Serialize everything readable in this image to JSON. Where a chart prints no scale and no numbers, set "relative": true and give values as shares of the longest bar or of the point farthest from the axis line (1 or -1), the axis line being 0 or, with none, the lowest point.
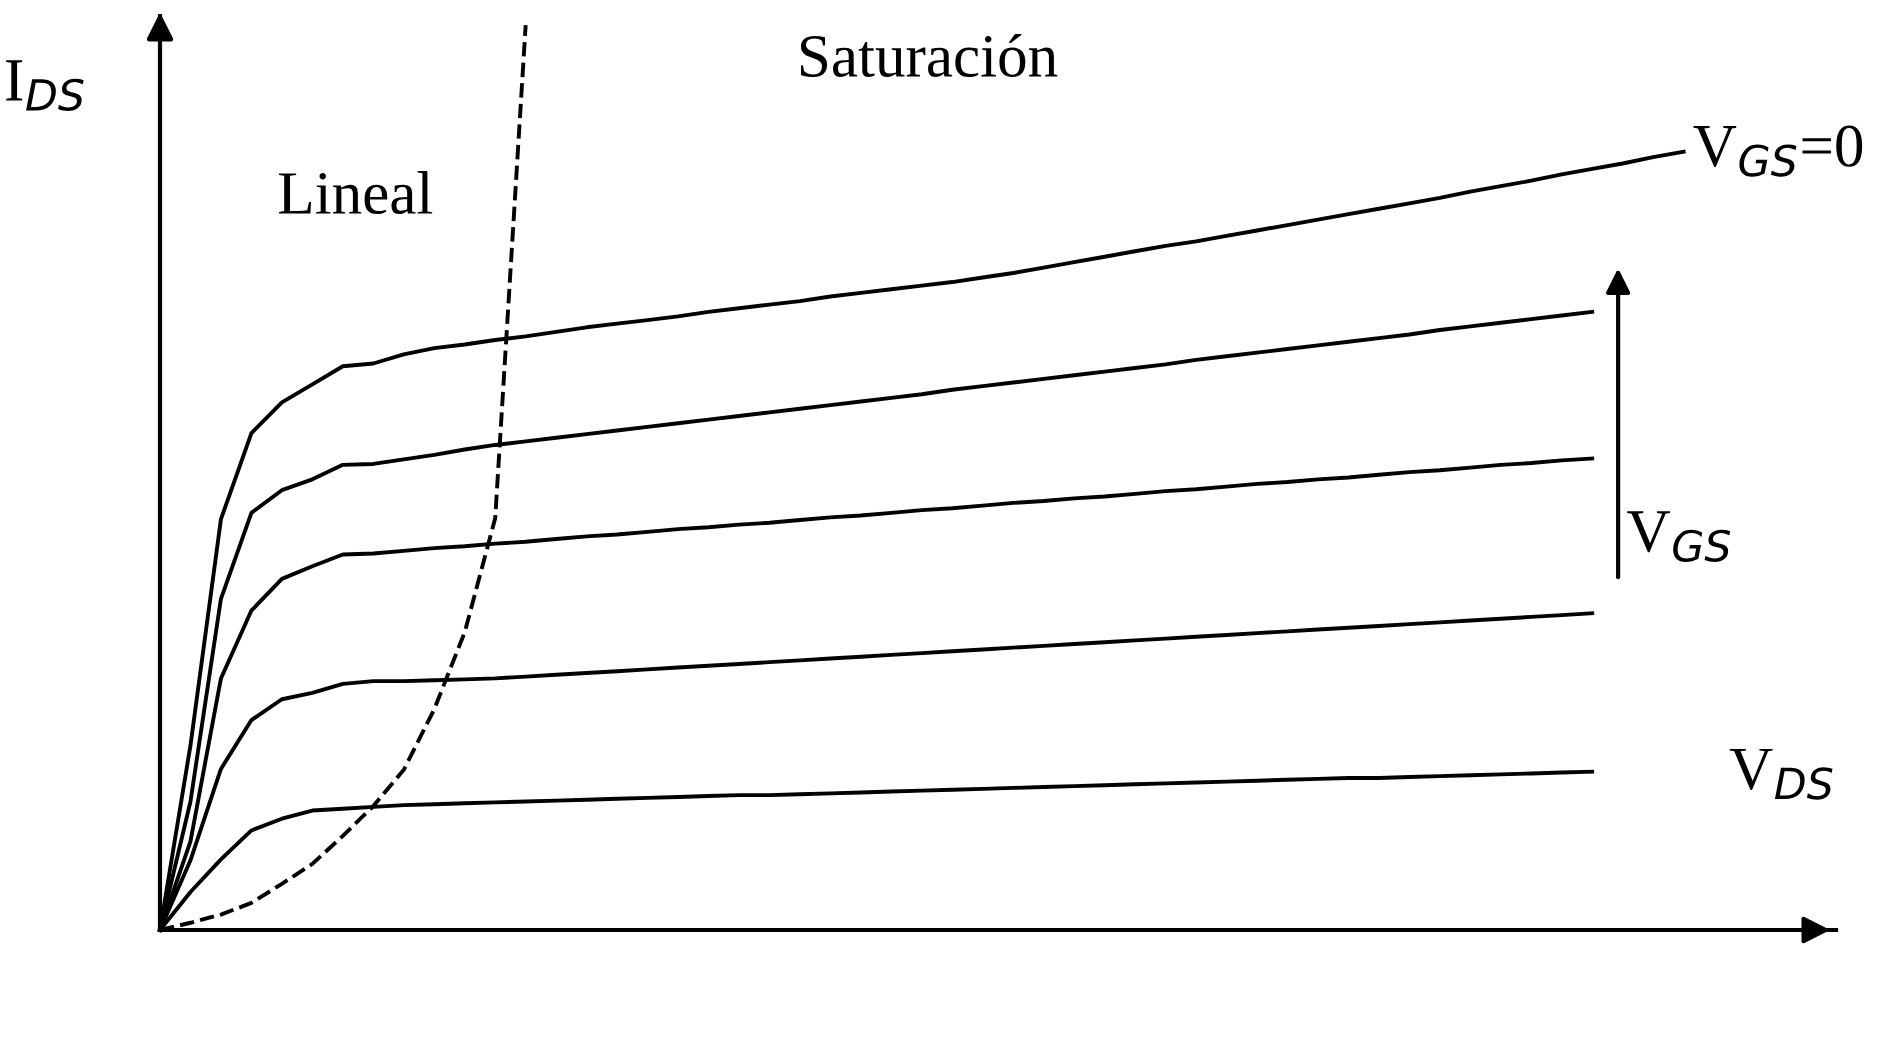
{
  "chart_data": {
    "type": "line",
    "relative": true,
    "xlabel": "V$_{DS}$",
    "ylabel": "I$_{DS}$",
    "grid": false,
    "legend": false,
    "marker": "none",
    "categories": [
      null,
      null,
      null,
      null,
      null,
      null,
      null,
      null,
      null,
      null,
      null,
      null,
      null,
      null,
      null,
      null,
      null,
      null,
      null,
      null,
      null,
      null,
      null,
      null,
      null,
      null,
      null,
      null,
      null,
      null,
      null,
      null,
      null,
      null,
      null,
      null,
      null,
      null,
      null,
      null,
      null,
      null,
      null,
      null,
      null,
      null,
      null,
      null,
      null,
      null,
      null,
      null,
      null,
      null,
      null,
      null
    ],
    "series": [
      {
        "name": "V$_{GS}$=0",
        "color": "#000000",
        "line_style": "solid",
        "values": [
          0,
          0.204,
          0.454,
          0.549,
          0.583,
          0.603,
          0.623,
          0.626,
          0.636,
          0.643,
          0.647,
          0.652,
          0.656,
          0.661,
          0.666,
          0.67,
          0.674,
          0.678,
          0.683,
          0.687,
          0.691,
          0.695,
          0.7,
          0.704,
          0.708,
          0.712,
          0.716,
          0.721,
          0.726,
          0.732,
          0.738,
          0.744,
          0.75,
          0.756,
          0.761,
          0.767,
          0.773,
          0.779,
          0.785,
          0.791,
          0.797,
          0.803,
          0.809,
          0.816,
          0.822,
          0.828,
          0.835,
          0.841,
          0.847,
          0.854,
          0.86,
          null,
          null,
          null,
          null,
          null
        ]
      },
      {
        "color": "#000000",
        "line_style": "solid",
        "values": [
          0,
          0.142,
          0.366,
          0.461,
          0.486,
          0.498,
          0.514,
          0.515,
          0.52,
          0.525,
          0.531,
          0.536,
          0.54,
          0.544,
          0.548,
          0.552,
          0.556,
          0.56,
          0.564,
          0.568,
          0.572,
          0.576,
          0.58,
          0.584,
          0.588,
          0.592,
          0.597,
          0.601,
          0.605,
          0.609,
          0.613,
          0.617,
          0.621,
          0.625,
          0.63,
          0.634,
          0.638,
          0.642,
          0.646,
          0.65,
          0.654,
          0.658,
          0.663,
          0.667,
          0.671,
          0.675,
          0.679,
          0.683,
          null,
          null,
          null,
          null,
          null,
          null,
          null,
          null
        ]
      },
      {
        "color": "#000000",
        "line_style": "solid",
        "values": [
          0,
          0.098,
          0.278,
          0.353,
          0.388,
          0.402,
          0.415,
          0.416,
          0.419,
          0.422,
          0.424,
          0.427,
          0.429,
          0.432,
          0.435,
          0.437,
          0.44,
          0.443,
          0.445,
          0.448,
          0.45,
          0.453,
          0.456,
          0.458,
          0.461,
          0.464,
          0.466,
          0.469,
          0.472,
          0.474,
          0.477,
          0.479,
          0.482,
          0.485,
          0.487,
          0.49,
          0.493,
          0.495,
          0.498,
          0.5,
          0.503,
          0.506,
          0.508,
          0.511,
          0.514,
          0.516,
          0.519,
          0.521,
          null,
          null,
          null,
          null,
          null,
          null,
          null,
          null
        ]
      },
      {
        "color": "#000000",
        "line_style": "solid",
        "values": [
          0,
          0.077,
          0.178,
          0.232,
          0.255,
          0.262,
          0.272,
          0.275,
          0.275,
          0.276,
          0.277,
          0.278,
          0.28,
          0.282,
          0.284,
          0.286,
          0.288,
          0.29,
          0.292,
          0.294,
          0.296,
          0.298,
          0.3,
          0.302,
          0.304,
          0.306,
          0.308,
          0.31,
          0.312,
          0.314,
          0.316,
          0.318,
          0.32,
          0.322,
          0.324,
          0.326,
          0.328,
          0.33,
          0.332,
          0.334,
          0.336,
          0.338,
          0.34,
          0.342,
          0.344,
          0.346,
          0.348,
          0.35,
          null,
          null,
          null,
          null,
          null,
          null,
          null,
          null
        ]
      },
      {
        "color": "#000000",
        "line_style": "solid",
        "values": [
          0,
          0.042,
          0.078,
          0.11,
          0.123,
          0.132,
          0.134,
          0.136,
          0.138,
          0.139,
          0.14,
          0.141,
          0.142,
          0.143,
          0.144,
          0.145,
          0.146,
          0.147,
          0.148,
          0.149,
          0.149,
          0.15,
          0.151,
          0.152,
          0.153,
          0.154,
          0.155,
          0.156,
          0.157,
          0.158,
          0.159,
          0.16,
          0.161,
          0.162,
          0.163,
          0.164,
          0.165,
          0.166,
          0.167,
          0.168,
          0.168,
          0.169,
          0.17,
          0.171,
          0.172,
          0.173,
          0.174,
          0.175,
          null,
          null,
          null,
          null,
          null,
          null,
          null,
          null
        ]
      },
      {
        "color": "#000000",
        "line_style": "dashed",
        "values": [
          0,
          0.008,
          0.017,
          0.03,
          0.051,
          0.073,
          0.104,
          0.137,
          0.177,
          0.244,
          0.329,
          0.455,
          1,
          null,
          null,
          null,
          null,
          null,
          null,
          null,
          null,
          null,
          null,
          null,
          null,
          null,
          null,
          null,
          null,
          null,
          null,
          null,
          null,
          null,
          null,
          null,
          null,
          null,
          null,
          null,
          null,
          null,
          null,
          null,
          null,
          null,
          null,
          null,
          null,
          null,
          null,
          null,
          null,
          null,
          null,
          null
        ]
      }
    ],
    "annotations": [
      "Saturación",
      "Lineal",
      "V$_{GS}$"
    ]
  }
}
